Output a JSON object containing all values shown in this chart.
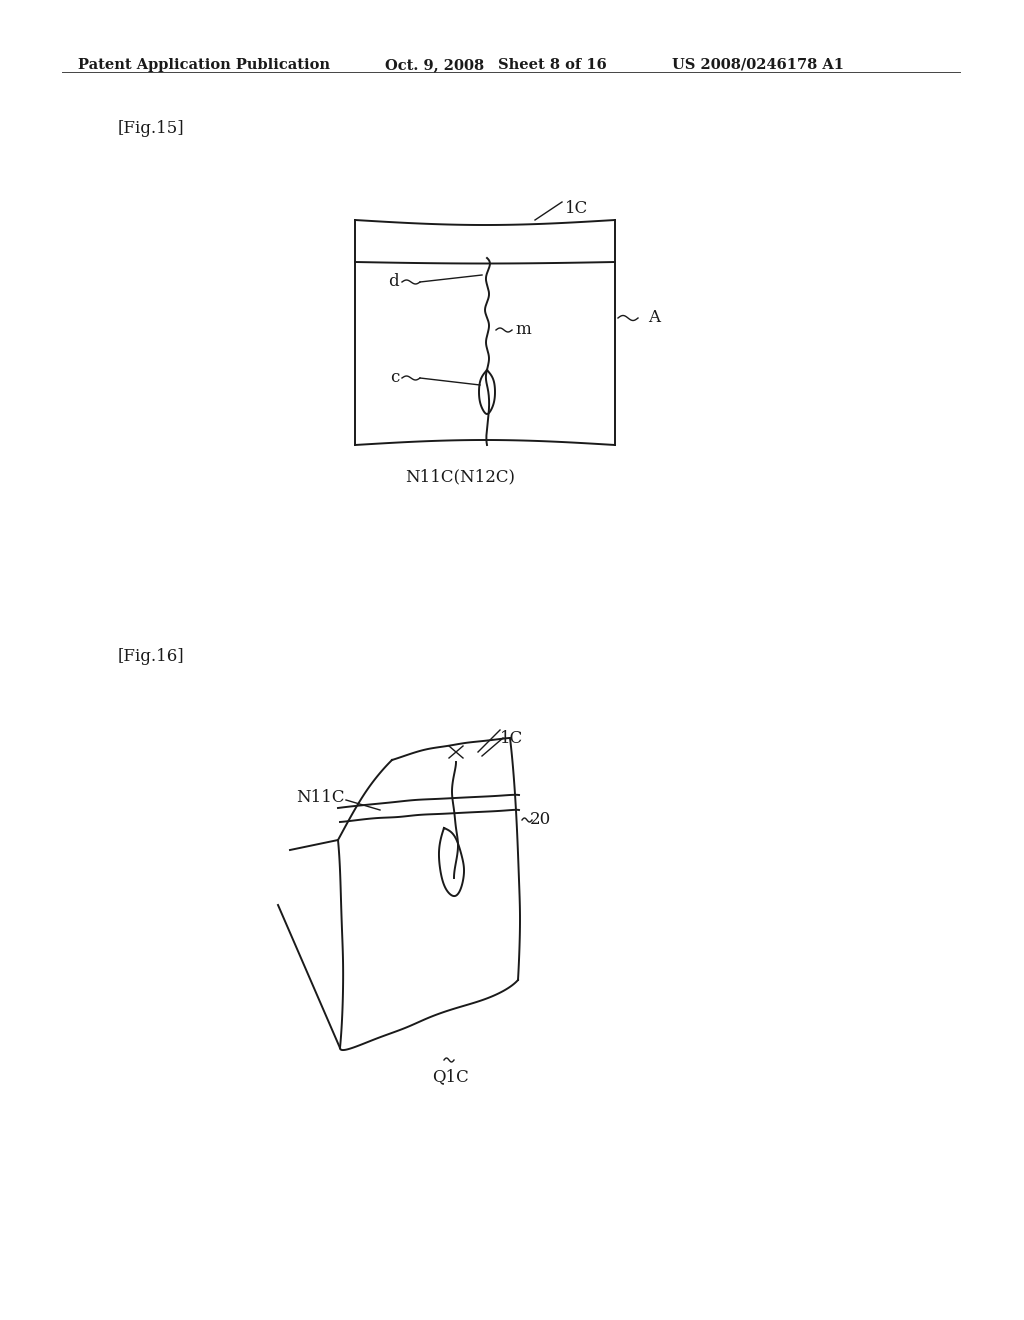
{
  "bg_color": "#ffffff",
  "text_color": "#1a1a1a",
  "header_line1": "Patent Application Publication",
  "header_date": "Oct. 9, 2008",
  "header_sheet": "Sheet 8 of 16",
  "header_patent": "US 2008/0246178 A1",
  "fig15_label": "[Fig.15]",
  "fig16_label": "[Fig.16]",
  "label_1C_fig15": "1C",
  "label_A_fig15": "A",
  "label_d": "d",
  "label_m": "m",
  "label_c": "c",
  "label_N11C_N12C": "N11C(N12C)",
  "label_1C_fig16": "1C",
  "label_N11C_fig16": "N11C",
  "label_20_fig16": "20",
  "label_Q1C_fig16": "Q1C"
}
